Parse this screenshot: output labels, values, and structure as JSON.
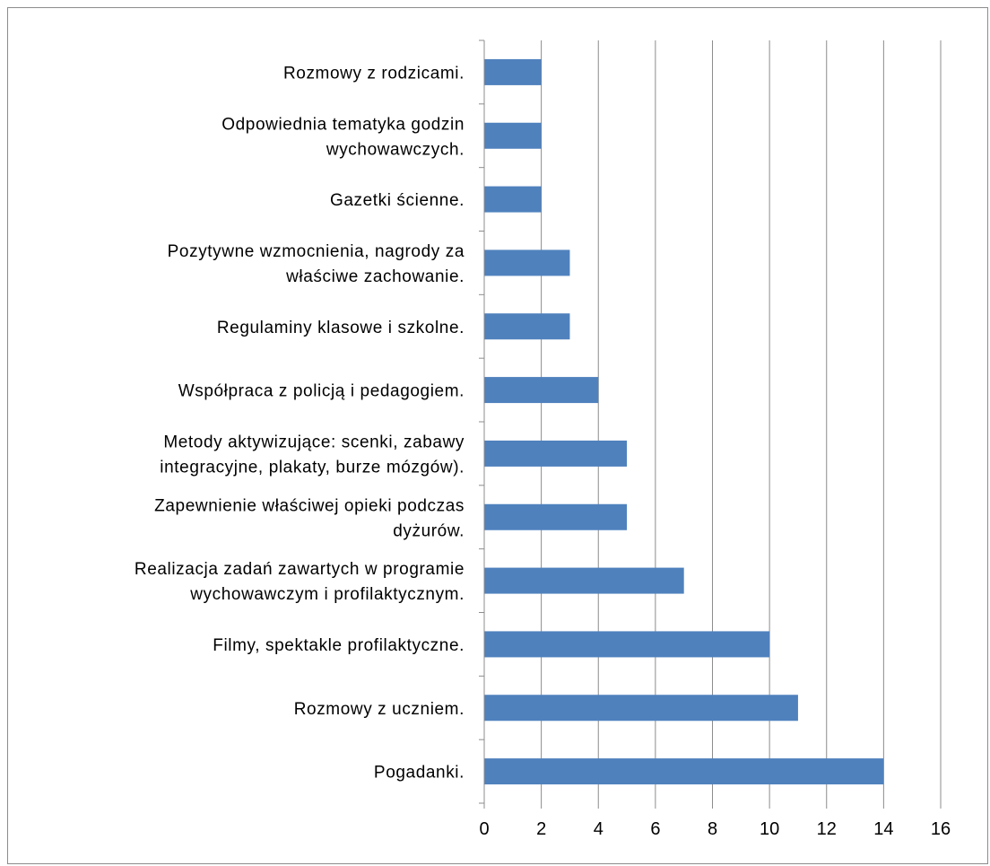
{
  "chart_data": {
    "type": "bar",
    "orientation": "horizontal",
    "title": "",
    "xlabel": "",
    "ylabel": "",
    "xlim": [
      0,
      16
    ],
    "x_ticks": [
      0,
      2,
      4,
      6,
      8,
      10,
      12,
      14,
      16
    ],
    "grid": "vertical",
    "legend": "none",
    "bar_color": "#4f81bd",
    "categories": [
      [
        "Pogadanki."
      ],
      [
        "Rozmowy z uczniem."
      ],
      [
        "Filmy, spektakle profilaktyczne."
      ],
      [
        "Realizacja zadań zawartych w programie",
        "wychowawczym i profilaktycznym."
      ],
      [
        "Zapewnienie właściwej opieki podczas",
        "dyżurów."
      ],
      [
        "Metody aktywizujące: scenki, zabawy",
        "integracyjne, plakaty, burze mózgów)."
      ],
      [
        "Współpraca z policją  i pedagogiem."
      ],
      [
        "Regulaminy klasowe i szkolne."
      ],
      [
        "Pozytywne wzmocnienia, nagrody za",
        "właściwe zachowanie."
      ],
      [
        "Gazetki ścienne."
      ],
      [
        "Odpowiednia tematyka godzin",
        "wychowawczych."
      ],
      [
        "Rozmowy z rodzicami."
      ]
    ],
    "values": [
      14,
      11,
      10,
      7,
      5,
      5,
      4,
      3,
      3,
      2,
      2,
      2
    ]
  }
}
